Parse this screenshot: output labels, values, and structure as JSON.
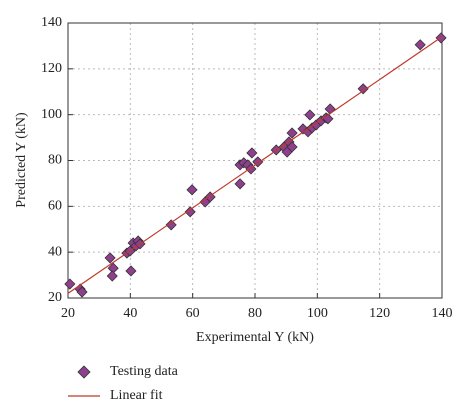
{
  "chart_data": {
    "type": "scatter",
    "x_label": "Experimental Y (kN)",
    "y_label": "Predicted Y (kN)",
    "xlim": [
      20,
      140
    ],
    "ylim": [
      20,
      140
    ],
    "xticks": [
      20,
      40,
      60,
      80,
      100,
      120,
      140
    ],
    "yticks": [
      20,
      40,
      60,
      80,
      100,
      120,
      140
    ],
    "grid": true,
    "legend": "below",
    "series": [
      {
        "name": "Testing data",
        "type": "scatter",
        "color": "#8e3f8e",
        "x": [
          20.6,
          23.9,
          24.5,
          33.5,
          34.5,
          34.2,
          38.9,
          39.9,
          40.9,
          40.2,
          41.8,
          42.5,
          43.1,
          53.1,
          59.2,
          59.8,
          64,
          65.6,
          75.2,
          76.4,
          75.2,
          77.7,
          78.7,
          79,
          80.9,
          86.8,
          89.3,
          90.3,
          90.9,
          91.9,
          91.9,
          95.4,
          97,
          97.6,
          98.3,
          99.6,
          101.2,
          102.8,
          103.4,
          104.1,
          114.7,
          133,
          139.7
        ],
        "values": [
          26.1,
          23.9,
          22.6,
          37.5,
          33,
          29.6,
          39.6,
          40.5,
          44,
          31.8,
          42.7,
          44.9,
          43.6,
          51.9,
          57.6,
          67.2,
          61.9,
          64.1,
          78.1,
          79,
          69.8,
          78.1,
          76.3,
          83.3,
          79.4,
          84.6,
          85.9,
          83.7,
          88.1,
          85.9,
          92,
          93.8,
          92.5,
          99.9,
          94.2,
          95.5,
          97.3,
          98.6,
          98.2,
          102.5,
          111.3,
          130.5,
          133.5
        ]
      },
      {
        "name": "Linear fit",
        "type": "line",
        "color": "#c0392b",
        "x": [
          20,
          140
        ],
        "values": [
          22,
          134
        ]
      }
    ]
  }
}
